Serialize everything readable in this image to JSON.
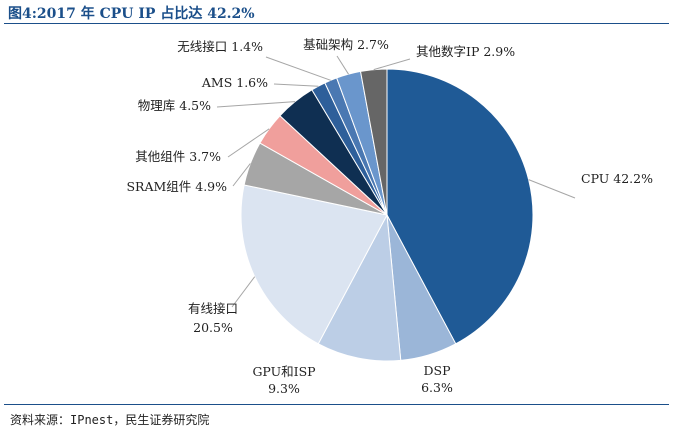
{
  "figure": {
    "title": "图4:2017 年 CPU IP 占比达 42.2%",
    "source": "资料来源：IPnest，民生证券研究院"
  },
  "chart_data": {
    "type": "pie",
    "title": "图4:2017 年 CPU IP 占比达 42.2%",
    "unit": "%",
    "slices": [
      {
        "name": "CPU",
        "value": 42.2,
        "label": "CPU 42.2%",
        "color": "#1f5a96"
      },
      {
        "name": "DSP",
        "value": 6.3,
        "label": "DSP|6.3%",
        "color": "#9bb6d8"
      },
      {
        "name": "GPU和ISP",
        "value": 9.3,
        "label": "GPU和ISP|9.3%",
        "color": "#bccee6"
      },
      {
        "name": "有线接口",
        "value": 20.5,
        "label": "有线接口|20.5%",
        "color": "#dbe4f1"
      },
      {
        "name": "SRAM组件",
        "value": 4.9,
        "label": "SRAM组件 4.9%",
        "color": "#a6a6a6"
      },
      {
        "name": "其他组件",
        "value": 3.7,
        "label": "其他组件 3.7%",
        "color": "#f09f9c"
      },
      {
        "name": "物理库",
        "value": 4.5,
        "label": "物理库 4.5%",
        "color": "#0f2f52"
      },
      {
        "name": "AMS",
        "value": 1.6,
        "label": "AMS 1.6%",
        "color": "#2e5f9a"
      },
      {
        "name": "无线接口",
        "value": 1.4,
        "label": "无线接口 1.4%",
        "color": "#4a78b2"
      },
      {
        "name": "基础架构",
        "value": 2.7,
        "label": "基础架构 2.7%",
        "color": "#6a96cc"
      },
      {
        "name": "其他数字IP",
        "value": 2.9,
        "label": "其他数字IP 2.9%",
        "color": "#666666"
      }
    ]
  }
}
